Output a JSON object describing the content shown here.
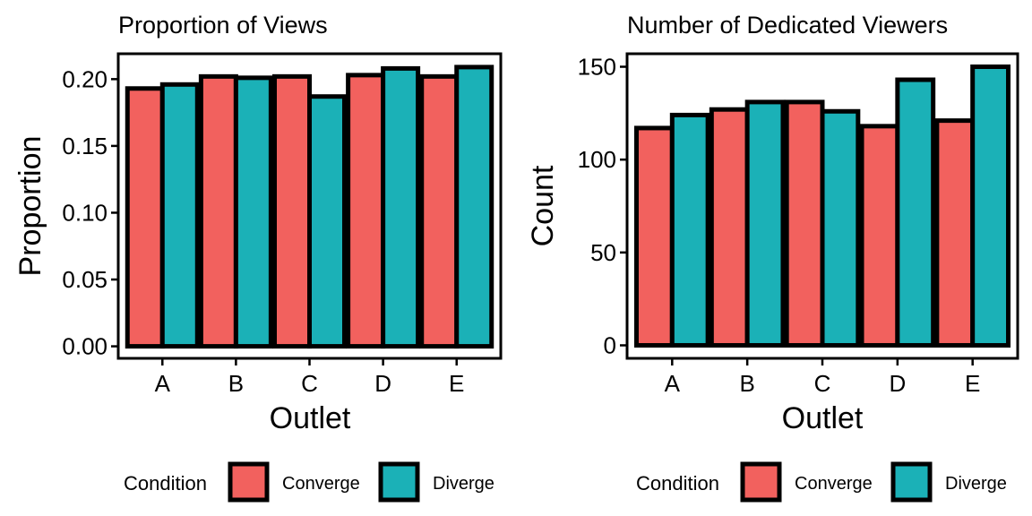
{
  "colors": {
    "Converge": "#F2615E",
    "Diverge": "#1BB1B7",
    "outline": "#000000"
  },
  "legend": {
    "title": "Condition",
    "items": [
      {
        "name": "Converge",
        "color": "#F2615E"
      },
      {
        "name": "Diverge",
        "color": "#1BB1B7"
      }
    ]
  },
  "chart_data": [
    {
      "type": "bar",
      "title": "Proportion of Views",
      "xlabel": "Outlet",
      "ylabel": "Proportion",
      "categories": [
        "A",
        "B",
        "C",
        "D",
        "E"
      ],
      "series": [
        {
          "name": "Converge",
          "values": [
            0.193,
            0.202,
            0.202,
            0.203,
            0.202
          ]
        },
        {
          "name": "Diverge",
          "values": [
            0.196,
            0.201,
            0.187,
            0.208,
            0.209
          ]
        }
      ],
      "ylim": [
        -0.009,
        0.219
      ],
      "yticks": [
        0.0,
        0.05,
        0.1,
        0.15,
        0.2
      ],
      "ytick_labels": [
        "0.00",
        "0.05",
        "0.10",
        "0.15",
        "0.20"
      ],
      "grid": false,
      "legend_position": "bottom"
    },
    {
      "type": "bar",
      "title": "Number of Dedicated Viewers",
      "xlabel": "Outlet",
      "ylabel": "Count",
      "categories": [
        "A",
        "B",
        "C",
        "D",
        "E"
      ],
      "series": [
        {
          "name": "Converge",
          "values": [
            117,
            127,
            131,
            118,
            121
          ]
        },
        {
          "name": "Diverge",
          "values": [
            124,
            131,
            126,
            143,
            150
          ]
        }
      ],
      "ylim": [
        -7,
        157
      ],
      "yticks": [
        0,
        50,
        100,
        150
      ],
      "ytick_labels": [
        "0",
        "50",
        "100",
        "150"
      ],
      "grid": false,
      "legend_position": "bottom"
    }
  ]
}
